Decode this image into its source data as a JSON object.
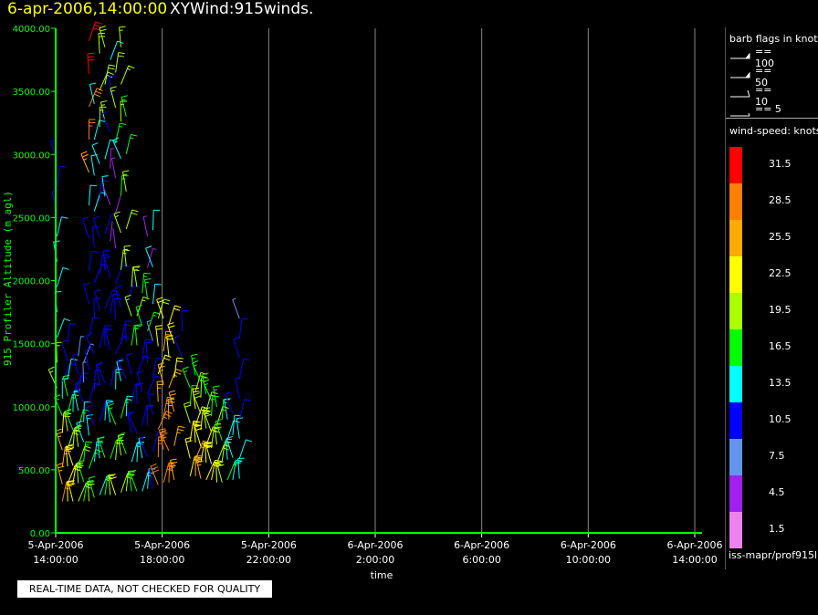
{
  "header": {
    "datetime": "6-apr-2006,14:00:00",
    "title": "XYWind:915winds."
  },
  "chart_data": {
    "type": "wind_barb_time_height",
    "ylabel": "915 Profiler Altitude (m agl)",
    "xlabel": "time",
    "ylim": [
      0,
      4000
    ],
    "yticks": [
      "0.00",
      "500.00",
      "1000.00",
      "1500.00",
      "2000.00",
      "2500.00",
      "3000.00",
      "3500.00",
      "4000.00"
    ],
    "xlim_hours": [
      0,
      48
    ],
    "xticks": [
      {
        "date": "5-Apr-2006",
        "time": "14:00:00"
      },
      {
        "date": "5-Apr-2006",
        "time": "18:00:00"
      },
      {
        "date": "5-Apr-2006",
        "time": "22:00:00"
      },
      {
        "date": "6-Apr-2006",
        "time": "2:00:00"
      },
      {
        "date": "6-Apr-2006",
        "time": "6:00:00"
      },
      {
        "date": "6-Apr-2006",
        "time": "10:00:00"
      },
      {
        "date": "6-Apr-2006",
        "time": "14:00:00"
      }
    ],
    "grid": true,
    "columns": [
      {
        "hour": 0.1,
        "alt": [
          1150,
          2950
        ],
        "speed": [
          19,
          19,
          14,
          14,
          14,
          13,
          13,
          12,
          12,
          12
        ]
      },
      {
        "hour": 0.5,
        "alt": [
          250,
          1200
        ],
        "speed": [
          28,
          27,
          26,
          25,
          22,
          18,
          14,
          11
        ]
      },
      {
        "hour": 0.9,
        "alt": [
          250,
          1500
        ],
        "speed": [
          24,
          23,
          22,
          21,
          20,
          18,
          16,
          14,
          12,
          11
        ]
      },
      {
        "hour": 1.3,
        "alt": [
          250,
          1100
        ],
        "speed": [
          23,
          22,
          22,
          20,
          16,
          13,
          11
        ]
      },
      {
        "hour": 1.7,
        "alt": [
          250,
          1400
        ],
        "speed": [
          21,
          20,
          20,
          19,
          17,
          14,
          12,
          11,
          9
        ]
      },
      {
        "hour": 2.1,
        "alt": [
          250,
          1350
        ],
        "speed": [
          17,
          17,
          16,
          15,
          13,
          11,
          9,
          8
        ]
      },
      {
        "hour": 2.5,
        "alt": [
          250,
          3900
        ],
        "speed": [
          20,
          18,
          15,
          12,
          11,
          11,
          10,
          10,
          12,
          13,
          26,
          28,
          30,
          32,
          32
        ]
      },
      {
        "hour": 2.9,
        "alt": [
          280,
          3400
        ],
        "speed": [
          16,
          15,
          12,
          11,
          10,
          10,
          11,
          12,
          13,
          13,
          14,
          14
        ]
      },
      {
        "hour": 3.3,
        "alt": [
          300,
          3800
        ],
        "speed": [
          15,
          13,
          12,
          11,
          10,
          11,
          11,
          12,
          12,
          13,
          19,
          20,
          21
        ]
      },
      {
        "hour": 3.7,
        "alt": [
          300,
          3850
        ],
        "speed": [
          18,
          16,
          13,
          12,
          11,
          10,
          11,
          12,
          13,
          14,
          19,
          20,
          21
        ]
      },
      {
        "hour": 4.1,
        "alt": [
          300,
          3750
        ],
        "speed": [
          19,
          17,
          14,
          12,
          11,
          10,
          10,
          4,
          4,
          5,
          11,
          12,
          13
        ]
      },
      {
        "hour": 4.5,
        "alt": [
          300,
          3650
        ],
        "speed": [
          22,
          20,
          17,
          15,
          12,
          11,
          10,
          4,
          4,
          6,
          17,
          19,
          20
        ]
      },
      {
        "hour": 4.9,
        "alt": [
          320,
          3850
        ],
        "speed": [
          21,
          19,
          16,
          13,
          11,
          10,
          19,
          19,
          17,
          15,
          19,
          19,
          19
        ]
      },
      {
        "hour": 5.3,
        "alt": [
          330,
          3300
        ],
        "speed": [
          20,
          18,
          15,
          12,
          11,
          10,
          19,
          20,
          19,
          17,
          18
        ]
      },
      {
        "hour": 5.7,
        "alt": [
          330,
          1950
        ],
        "speed": [
          17,
          15,
          12,
          11,
          10,
          18,
          19,
          20
        ]
      },
      {
        "hour": 6.1,
        "alt": [
          330,
          1950
        ],
        "speed": [
          16,
          14,
          12,
          11,
          10,
          18,
          19,
          19
        ]
      },
      {
        "hour": 6.5,
        "alt": [
          330,
          1900
        ],
        "speed": [
          15,
          13,
          12,
          11,
          10,
          17,
          18
        ]
      },
      {
        "hour": 6.9,
        "alt": [
          350,
          2350
        ],
        "speed": [
          13,
          12,
          11,
          10,
          10,
          16,
          17,
          5,
          6
        ]
      },
      {
        "hour": 7.3,
        "alt": [
          350,
          2400
        ],
        "speed": [
          12,
          11,
          10,
          10,
          9,
          13,
          13,
          14
        ]
      },
      {
        "hour": 7.7,
        "alt": [
          380,
          1700
        ],
        "speed": [
          30,
          29,
          28,
          26,
          24,
          22,
          20
        ]
      },
      {
        "hour": 8.1,
        "alt": [
          400,
          1700
        ],
        "speed": [
          30,
          29,
          28,
          27,
          25,
          23
        ]
      },
      {
        "hour": 8.5,
        "alt": [
          400,
          1650
        ],
        "speed": [
          29,
          28,
          27,
          26,
          24,
          22
        ]
      },
      {
        "hour": 8.9,
        "alt": [
          420,
          1500
        ],
        "speed": [
          27,
          26,
          25,
          24,
          22
        ]
      },
      {
        "hour": 9.5,
        "alt": [
          1400,
          1600
        ],
        "speed": [
          11,
          12
        ]
      },
      {
        "hour": 10.1,
        "alt": [
          450,
          1150
        ],
        "speed": [
          24,
          23,
          22,
          20,
          18,
          16
        ]
      },
      {
        "hour": 10.5,
        "alt": [
          450,
          1250
        ],
        "speed": [
          26,
          25,
          24,
          23,
          22,
          20,
          18
        ]
      },
      {
        "hour": 10.9,
        "alt": [
          430,
          1200
        ],
        "speed": [
          25,
          24,
          23,
          22,
          21,
          19,
          17
        ]
      },
      {
        "hour": 11.3,
        "alt": [
          420,
          1100
        ],
        "speed": [
          24,
          23,
          22,
          21,
          19,
          17
        ]
      },
      {
        "hour": 11.7,
        "alt": [
          420,
          1050
        ],
        "speed": [
          23,
          22,
          21,
          20,
          18,
          16
        ]
      },
      {
        "hour": 12.1,
        "alt": [
          400,
          1000
        ],
        "speed": [
          22,
          21,
          20,
          19,
          17
        ]
      },
      {
        "hour": 12.5,
        "alt": [
          400,
          900
        ],
        "speed": [
          20,
          19,
          18,
          17
        ]
      },
      {
        "hour": 12.9,
        "alt": [
          420,
          900
        ],
        "speed": [
          16,
          15,
          14,
          13
        ]
      },
      {
        "hour": 13.3,
        "alt": [
          420,
          950
        ],
        "speed": [
          15,
          14,
          13,
          12
        ]
      },
      {
        "hour": 13.8,
        "alt": [
          430,
          1700
        ],
        "speed": [
          15,
          14,
          13,
          12,
          11,
          12,
          11,
          10,
          9
        ]
      }
    ]
  },
  "legend": {
    "barb_title": "barb flags in knots",
    "barbs": [
      {
        "label": "== 100",
        "kind": "flag100"
      },
      {
        "label": "== 50",
        "kind": "flag50"
      },
      {
        "label": "== 10",
        "kind": "full10"
      },
      {
        "label": "== 5",
        "kind": "half5"
      }
    ],
    "speed_title": "wind-speed: knots",
    "colorbar": [
      {
        "label": "31.5",
        "color": "#ff0000"
      },
      {
        "label": "28.5",
        "color": "#ff7f00"
      },
      {
        "label": "25.5",
        "color": "#ffaa00"
      },
      {
        "label": "22.5",
        "color": "#ffff00"
      },
      {
        "label": "19.5",
        "color": "#aaff00"
      },
      {
        "label": "16.5",
        "color": "#00ff00"
      },
      {
        "label": "13.5",
        "color": "#00ffff"
      },
      {
        "label": "10.5",
        "color": "#0000ff"
      },
      {
        "label": "7.5",
        "color": "#6495ed"
      },
      {
        "label": "4.5",
        "color": "#a020f0"
      },
      {
        "label": "1.5",
        "color": "#ee82ee"
      }
    ],
    "source": "iss-mapr/prof915l"
  },
  "footer": {
    "warning": "REAL-TIME DATA, NOT CHECKED FOR QUALITY"
  },
  "colors": {
    "axis": "#00ff00",
    "grid": "#888888",
    "header_date": "#ffff00"
  }
}
